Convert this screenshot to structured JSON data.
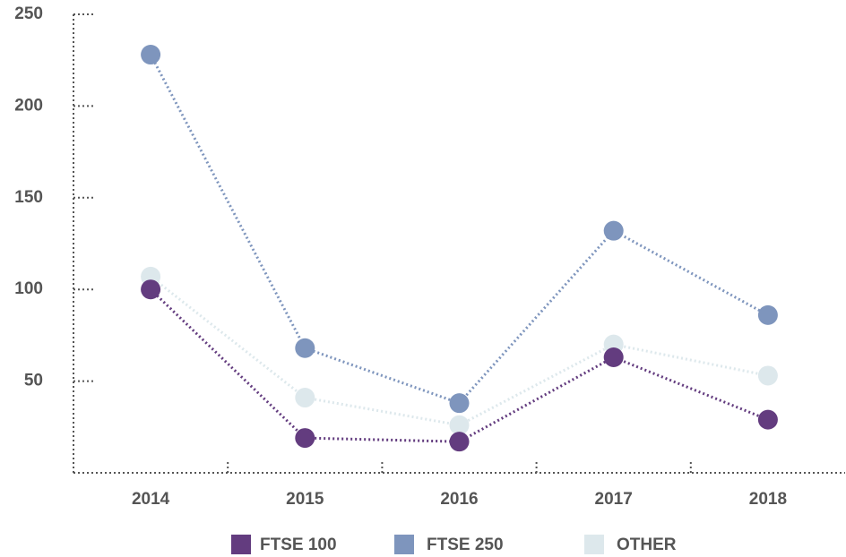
{
  "chart_data": {
    "type": "line",
    "categories": [
      "2014",
      "2015",
      "2016",
      "2017",
      "2018"
    ],
    "series": [
      {
        "name": "FTSE 100",
        "color": "#633c7f",
        "values": [
          100,
          19,
          17,
          63,
          29
        ]
      },
      {
        "name": "FTSE 250",
        "color": "#7e95bd",
        "values": [
          228,
          68,
          38,
          132,
          86
        ]
      },
      {
        "name": "OTHER",
        "color": "#dde8ec",
        "values": [
          107,
          41,
          26,
          70,
          53
        ]
      }
    ],
    "ylim": [
      0,
      250
    ],
    "yticks": [
      50,
      100,
      150,
      200,
      250
    ],
    "legend": "bottom"
  }
}
